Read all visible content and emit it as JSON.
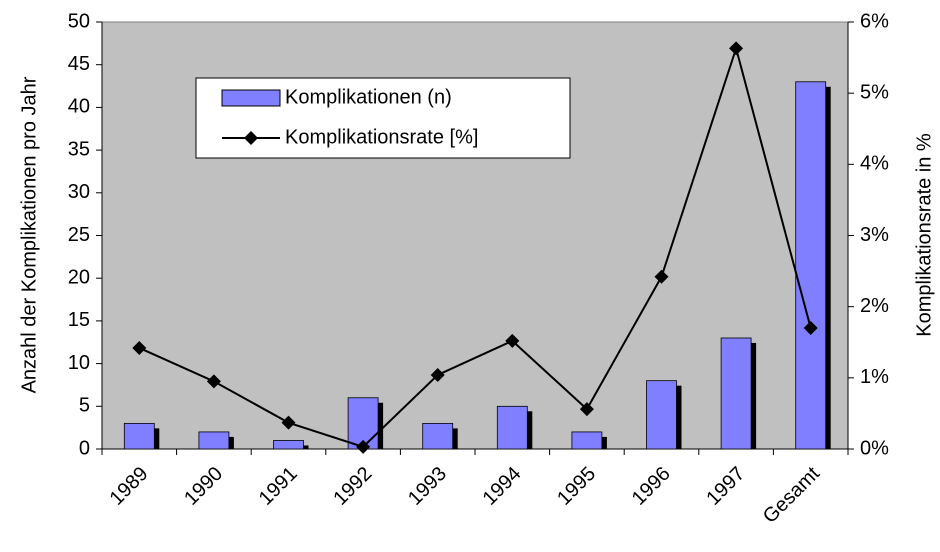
{
  "chart_data": {
    "type": "bar",
    "categories": [
      "1989",
      "1990",
      "1991",
      "1992",
      "1993",
      "1994",
      "1995",
      "1996",
      "1997",
      "Gesamt"
    ],
    "series": [
      {
        "name": "Komplikationen (n)",
        "type": "bar",
        "color": "#7f7fff",
        "values": [
          3,
          2,
          1,
          6,
          3,
          5,
          2,
          8,
          13,
          43
        ]
      },
      {
        "name": "Komplikationsrate [%]",
        "type": "line",
        "axis": "y2",
        "color": "#000000",
        "values": [
          1.42,
          0.95,
          0.37,
          0.03,
          1.04,
          1.52,
          0.56,
          2.42,
          5.63,
          1.7
        ]
      }
    ],
    "ylabel": "Anzahl der Komplikationen pro Jahr",
    "y2label": "Komplikationsrate in %",
    "ylim": [
      0,
      50
    ],
    "yticks": [
      0,
      5,
      10,
      15,
      20,
      25,
      30,
      35,
      40,
      45,
      50
    ],
    "y2lim": [
      0,
      6
    ],
    "y2ticks": [
      {
        "value": 0,
        "label": "0%"
      },
      {
        "value": 1,
        "label": "1%"
      },
      {
        "value": 2,
        "label": "2%"
      },
      {
        "value": 3,
        "label": "3%"
      },
      {
        "value": 4,
        "label": "4%"
      },
      {
        "value": 5,
        "label": "5%"
      },
      {
        "value": 6,
        "label": "6%"
      }
    ],
    "plot_background": "#c0c0c0"
  }
}
